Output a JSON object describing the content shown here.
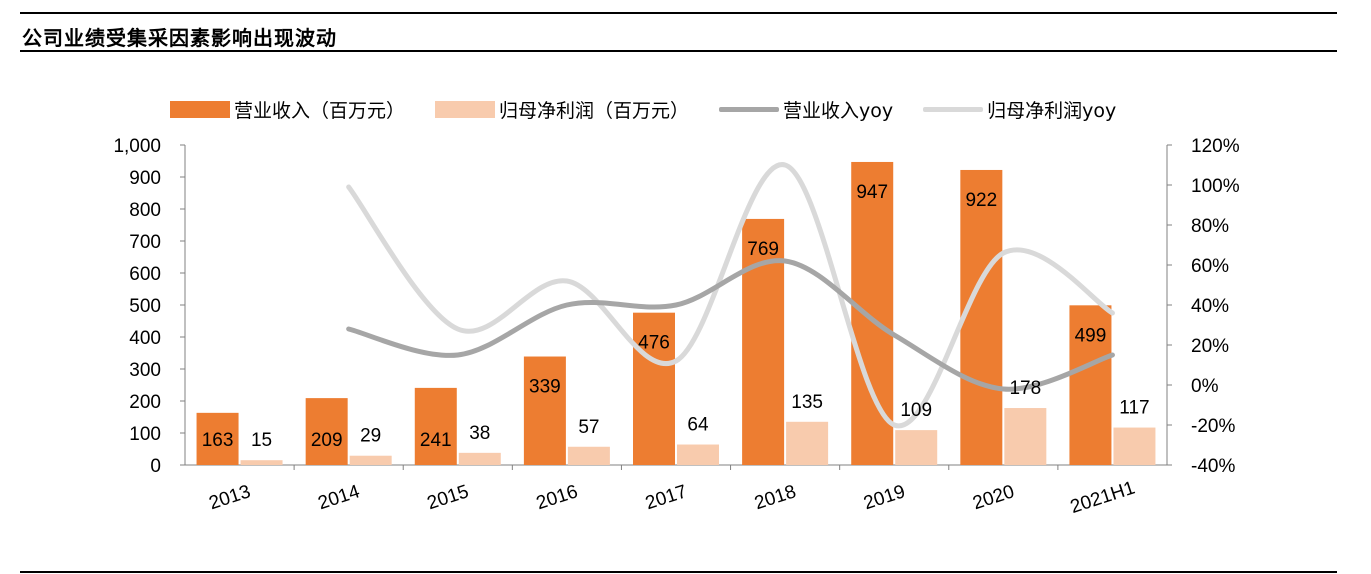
{
  "page": {
    "title": "公司业绩受集采因素影响出现波动"
  },
  "chart_data": {
    "type": "bar",
    "title": "公司业绩受集采因素影响出现波动",
    "categories": [
      "2013",
      "2014",
      "2015",
      "2016",
      "2017",
      "2018",
      "2019",
      "2020",
      "2021H1"
    ],
    "series": [
      {
        "name": "营业收入（百万元）",
        "kind": "bar",
        "axis": "left",
        "values": [
          163,
          209,
          241,
          339,
          476,
          769,
          947,
          922,
          499
        ],
        "color": "#ED7D31"
      },
      {
        "name": "归母净利润（百万元）",
        "kind": "bar",
        "axis": "left",
        "values": [
          15,
          29,
          38,
          57,
          64,
          135,
          109,
          178,
          117
        ],
        "color": "#F8CBAD"
      },
      {
        "name": "营业收入yoy",
        "kind": "line",
        "axis": "right",
        "values": [
          null,
          28,
          15,
          40,
          40,
          62,
          25,
          -2,
          15
        ],
        "color": "#A6A6A6"
      },
      {
        "name": "归母净利润yoy",
        "kind": "line",
        "axis": "right",
        "values": [
          null,
          99,
          28,
          52,
          12,
          110,
          -20,
          66,
          36
        ],
        "color": "#D9D9D9"
      }
    ],
    "left_axis": {
      "min": 0,
      "max": 1000,
      "ticks": [
        "0",
        "100",
        "200",
        "300",
        "400",
        "500",
        "600",
        "700",
        "800",
        "900",
        "1,000"
      ]
    },
    "right_axis": {
      "min": -40,
      "max": 120,
      "ticks": [
        "-40%",
        "-20%",
        "0%",
        "20%",
        "40%",
        "60%",
        "80%",
        "100%",
        "120%"
      ]
    },
    "legend_position": "top"
  }
}
